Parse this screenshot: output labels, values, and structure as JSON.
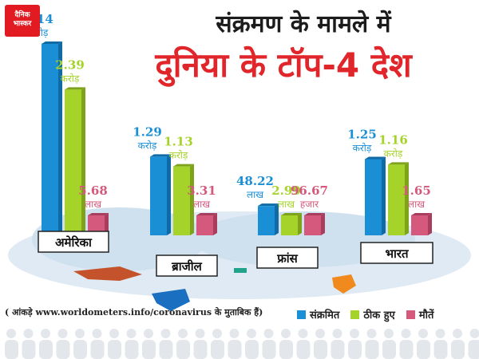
{
  "logo": {
    "line1": "दैनिक",
    "line2": "भास्कर"
  },
  "title": {
    "line1": "संक्रमण के मामले में",
    "line2": "दुनिया के टॉप-4 देश"
  },
  "source_note": "( आंकड़े www.worldometers.info/coronavirus के मुताबिक हैं)",
  "colors": {
    "infected": "#1a8fd6",
    "recovered": "#a6d32a",
    "deaths": "#d4597c",
    "map": "#cfe3f2"
  },
  "chart_data": {
    "type": "bar",
    "unit_note": "values in crore (1 करोड़ = 100 लाख)",
    "categories": [
      "अमेरिका",
      "ब्राजील",
      "फ्रांस",
      "भारत"
    ],
    "series": [
      {
        "name": "संक्रमित",
        "values": [
          3.14,
          1.29,
          0.4822,
          1.25
        ]
      },
      {
        "name": "ठीक हुए",
        "values": [
          2.39,
          1.13,
          0.0299,
          1.16
        ]
      },
      {
        "name": "मौतें",
        "values": [
          0.0568,
          0.0331,
          0.0009667,
          0.0165
        ]
      }
    ],
    "labels": [
      [
        {
          "num": "3.14",
          "unit": "करोड़"
        },
        {
          "num": "2.39",
          "unit": "करोड़"
        },
        {
          "num": "5.68",
          "unit": "लाख"
        }
      ],
      [
        {
          "num": "1.29",
          "unit": "करोड़"
        },
        {
          "num": "1.13",
          "unit": "करोड़"
        },
        {
          "num": "3.31",
          "unit": "लाख"
        }
      ],
      [
        {
          "num": "48.22",
          "unit": "लाख"
        },
        {
          "num": "2.99",
          "unit": "लाख"
        },
        {
          "num": "96.67",
          "unit": "हजार"
        }
      ],
      [
        {
          "num": "1.25",
          "unit": "करोड़"
        },
        {
          "num": "1.16",
          "unit": "करोड़"
        },
        {
          "num": "1.65",
          "unit": "लाख"
        }
      ]
    ],
    "legend_position": "bottom-right"
  }
}
